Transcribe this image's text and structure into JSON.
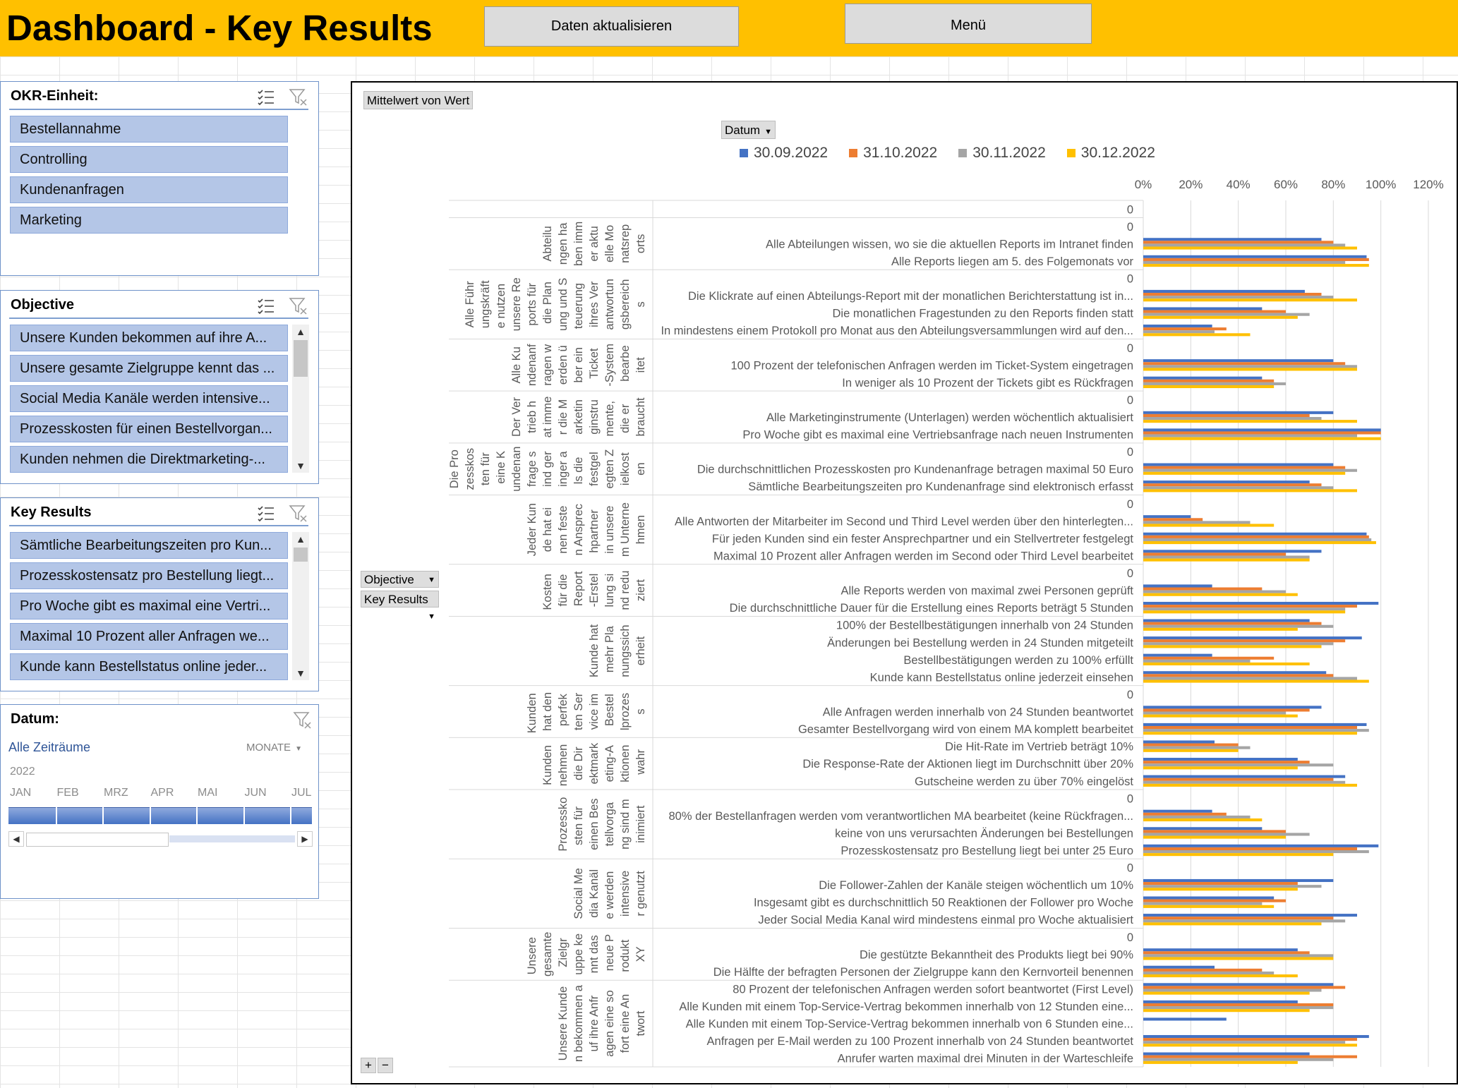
{
  "header": {
    "title": "Dashboard - Key Results",
    "refresh_button": "Daten aktualisieren",
    "menu_button": "Menü"
  },
  "slicers": {
    "okr_unit": {
      "title": "OKR-Einheit:",
      "items": [
        "Bestellannahme",
        "Controlling",
        "Kundenanfragen",
        "Marketing"
      ]
    },
    "objective": {
      "title": "Objective",
      "items": [
        "Unsere Kunden bekommen auf ihre A...",
        "Unsere gesamte Zielgruppe kennt das ...",
        "Social Media Kanäle werden intensive...",
        "Prozesskosten für einen Bestellvorgan...",
        "Kunden nehmen die Direktmarketing-..."
      ]
    },
    "key_results": {
      "title": "Key Results",
      "items": [
        "Sämtliche Bearbeitungszeiten pro Kun...",
        "Prozesskostensatz pro Bestellung liegt...",
        "Pro Woche gibt es maximal eine Vertri...",
        "Maximal 10 Prozent aller Anfragen we...",
        "Kunde kann Bestellstatus online jeder..."
      ]
    },
    "date": {
      "title": "Datum:",
      "all_periods": "Alle Zeiträume",
      "level": "MONATE",
      "year": "2022",
      "months": [
        "JAN",
        "FEB",
        "MRZ",
        "APR",
        "MAI",
        "JUN",
        "JUL"
      ]
    }
  },
  "pivot": {
    "value_button": "Mittelwert von Wert",
    "date_button": "Datum",
    "objective_button": "Objective",
    "key_results_button": "Key Results",
    "plus": "+",
    "minus": "−"
  },
  "colors": {
    "series": [
      "#4472c4",
      "#ed7d31",
      "#a5a5a5",
      "#ffc000"
    ],
    "accent": "#ffc000",
    "slicer_item": "#b4c6e7"
  },
  "chart_data": {
    "type": "bar",
    "orientation": "horizontal",
    "xlim": [
      0,
      120
    ],
    "x_ticks": [
      "0%",
      "20%",
      "40%",
      "60%",
      "80%",
      "100%",
      "120%"
    ],
    "legend_position": "top",
    "series_names": [
      "30.09.2022",
      "31.10.2022",
      "30.11.2022",
      "30.12.2022"
    ],
    "groups": [
      {
        "objective": "",
        "rows": [
          {
            "label": "0",
            "values": [
              0,
              0,
              0,
              0
            ]
          }
        ]
      },
      {
        "objective": "Abteilungen haben immer aktuelle Monatsreports",
        "rows": [
          {
            "label": "0",
            "values": [
              0,
              0,
              0,
              0
            ]
          },
          {
            "label": "Alle Abteilungen wissen, wo sie die aktuellen Reports im Intranet finden",
            "values": [
              75,
              80,
              85,
              90
            ]
          },
          {
            "label": "Alle Reports liegen am 5. des Folgemonats vor",
            "values": [
              94,
              95,
              85,
              95
            ]
          }
        ]
      },
      {
        "objective": "Alle Führungskräfte nutzen unsere Reports für die Planung und Steuerung ihres Verantwortungsbereichs",
        "rows": [
          {
            "label": "0",
            "values": [
              0,
              0,
              0,
              0
            ]
          },
          {
            "label": "Die Klickrate auf einen Abteilungs-Report mit der monatlichen Berichterstattung ist in...",
            "values": [
              68,
              75,
              80,
              90
            ]
          },
          {
            "label": "Die monatlichen Fragestunden zu den Reports finden statt",
            "values": [
              50,
              60,
              70,
              65
            ]
          },
          {
            "label": "In mindestens einem Protokoll pro Monat aus den Abteilungsversammlungen wird auf den...",
            "values": [
              29,
              35,
              30,
              45
            ]
          }
        ]
      },
      {
        "objective": "Alle Kundenanfragen werden über ein Ticket-System bearbeitet",
        "rows": [
          {
            "label": "0",
            "values": [
              0,
              0,
              0,
              0
            ]
          },
          {
            "label": "100 Prozent der telefonischen Anfragen werden im Ticket-System eingetragen",
            "values": [
              80,
              85,
              90,
              90
            ]
          },
          {
            "label": "In weniger als 10 Prozent der Tickets gibt es Rückfragen",
            "values": [
              50,
              55,
              60,
              55
            ]
          }
        ]
      },
      {
        "objective": "Der Vertrieb hat immer die Marketinginstrumente, die er braucht",
        "rows": [
          {
            "label": "0",
            "values": [
              0,
              0,
              0,
              0
            ]
          },
          {
            "label": "Alle Marketinginstrumente (Unterlagen) werden wöchentlich aktualisiert",
            "values": [
              80,
              70,
              75,
              90
            ]
          },
          {
            "label": "Pro Woche gibt es maximal eine Vertriebsanfrage nach neuen Instrumenten",
            "values": [
              100,
              100,
              90,
              100
            ]
          }
        ]
      },
      {
        "objective": "Die Prozesskosten für eine Kundenanfrage sind geringer als die festgelegten Zielkosten",
        "rows": [
          {
            "label": "0",
            "values": [
              0,
              0,
              0,
              0
            ]
          },
          {
            "label": "Die durchschnittlichen Prozesskosten pro Kundenanfrage betragen maximal 50 Euro",
            "values": [
              80,
              85,
              90,
              85
            ]
          },
          {
            "label": "Sämtliche Bearbeitungszeiten pro Kundenanfrage sind elektronisch erfasst",
            "values": [
              70,
              75,
              80,
              90
            ]
          }
        ]
      },
      {
        "objective": "Jeder Kunde hat einen festen Ansprechpartner in unserem Unternehmen",
        "rows": [
          {
            "label": "0",
            "values": [
              0,
              0,
              0,
              0
            ]
          },
          {
            "label": "Alle Antworten der Mitarbeiter im Second und Third Level werden über den hinterlegten...",
            "values": [
              20,
              25,
              45,
              55
            ]
          },
          {
            "label": "Für jeden Kunden sind ein fester Ansprechpartner und ein Stellvertreter festgelegt",
            "values": [
              94,
              95,
              96,
              98
            ]
          },
          {
            "label": "Maximal 10 Prozent aller Anfragen werden im Second oder Third Level bearbeitet",
            "values": [
              75,
              60,
              70,
              70
            ]
          }
        ]
      },
      {
        "objective": "Kosten für die Report-Erstellung sind reduziert",
        "rows": [
          {
            "label": "0",
            "values": [
              0,
              0,
              0,
              0
            ]
          },
          {
            "label": "Alle Reports werden von maximal zwei Personen geprüft",
            "values": [
              29,
              50,
              60,
              65
            ]
          },
          {
            "label": "Die durchschnittliche Dauer für die Erstellung eines Reports beträgt 5 Stunden",
            "values": [
              99,
              90,
              85,
              85
            ]
          }
        ]
      },
      {
        "objective": "Kunde hat mehr Planungssicherheit",
        "rows": [
          {
            "label": "100% der Bestellbestätigungen innerhalb von 24 Stunden",
            "values": [
              70,
              75,
              80,
              65
            ]
          },
          {
            "label": "Änderungen bei Bestellung werden in 24 Stunden mitgeteilt",
            "values": [
              92,
              85,
              80,
              75
            ]
          },
          {
            "label": "Bestellbestätigungen werden zu 100% erfüllt",
            "values": [
              29,
              55,
              45,
              70
            ]
          },
          {
            "label": "Kunde kann Bestellstatus online jederzeit einsehen",
            "values": [
              77,
              80,
              90,
              95
            ]
          }
        ]
      },
      {
        "objective": "Kunden hat den perfekten Service im Bestellprozess",
        "rows": [
          {
            "label": "0",
            "values": [
              0,
              0,
              0,
              0
            ]
          },
          {
            "label": "Alle Anfragen werden innerhalb von 24 Stunden beantwortet",
            "values": [
              75,
              70,
              60,
              65
            ]
          },
          {
            "label": "Gesamter Bestellvorgang wird von einem MA komplett bearbeitet",
            "values": [
              94,
              90,
              95,
              90
            ]
          }
        ]
      },
      {
        "objective": "Kunden nehmen die Direktmarketing-Aktionen wahr",
        "rows": [
          {
            "label": "Die Hit-Rate im Vertrieb beträgt 10%",
            "values": [
              30,
              40,
              45,
              40
            ]
          },
          {
            "label": "Die Response-Rate der Aktionen liegt im Durchschnitt über 20%",
            "values": [
              65,
              70,
              80,
              65
            ]
          },
          {
            "label": "Gutscheine werden zu über 70% eingelöst",
            "values": [
              85,
              80,
              85,
              90
            ]
          }
        ]
      },
      {
        "objective": "Prozesskosten für einen Bestellvorgang sind minimiert",
        "rows": [
          {
            "label": "0",
            "values": [
              0,
              0,
              0,
              0
            ]
          },
          {
            "label": "80% der Bestellanfragen werden vom verantwortlichen MA bearbeitet (keine Rückfragen...",
            "values": [
              29,
              35,
              45,
              50
            ]
          },
          {
            "label": "keine von uns verursachten Änderungen bei Bestellungen",
            "values": [
              50,
              60,
              70,
              60
            ]
          },
          {
            "label": "Prozesskostensatz pro Bestellung liegt bei unter 25 Euro",
            "values": [
              99,
              90,
              95,
              80
            ]
          }
        ]
      },
      {
        "objective": "Social Media Kanäle werden intensiver genutzt",
        "rows": [
          {
            "label": "0",
            "values": [
              0,
              0,
              0,
              0
            ]
          },
          {
            "label": "Die Follower-Zahlen der Kanäle steigen wöchentlich um 10%",
            "values": [
              80,
              65,
              75,
              65
            ]
          },
          {
            "label": "Insgesamt gibt es durchschnittlich 50 Reaktionen der Follower pro Woche",
            "values": [
              55,
              60,
              50,
              55
            ]
          },
          {
            "label": "Jeder Social Media Kanal wird mindestens einmal pro Woche aktualisiert",
            "values": [
              90,
              80,
              85,
              75
            ]
          }
        ]
      },
      {
        "objective": "Unsere gesamte Zielgruppe kennt das neue Produkt XY",
        "rows": [
          {
            "label": "0",
            "values": [
              0,
              0,
              0,
              0
            ]
          },
          {
            "label": "Die gestützte Bekanntheit des Produkts liegt bei 90%",
            "values": [
              65,
              70,
              80,
              80
            ]
          },
          {
            "label": "Die Hälfte der befragten Personen der Zielgruppe kann den Kernvorteil benennen",
            "values": [
              30,
              50,
              55,
              65
            ]
          }
        ]
      },
      {
        "objective": "Unsere Kunden bekommen auf ihre Anfragen eine sofort eine Antwort",
        "rows": [
          {
            "label": "80 Prozent der telefonischen Anfragen werden sofort beantwortet (First Level)",
            "values": [
              80,
              85,
              75,
              70
            ]
          },
          {
            "label": "Alle Kunden mit einem Top-Service-Vertrag bekommen innerhalb von 12 Stunden eine...",
            "values": [
              65,
              80,
              80,
              70
            ]
          },
          {
            "label": "Alle Kunden mit einem Top-Service-Vertrag bekommen innerhalb von 6 Stunden eine...",
            "values": [
              35,
              0,
              0,
              0
            ]
          },
          {
            "label": "Anfragen per E-Mail werden zu 100 Prozent innerhalb von 24 Stunden beantwortet",
            "values": [
              95,
              90,
              85,
              90
            ]
          },
          {
            "label": "Anrufer warten maximal drei Minuten in der Warteschleife",
            "values": [
              70,
              90,
              80,
              65
            ]
          }
        ]
      }
    ]
  }
}
